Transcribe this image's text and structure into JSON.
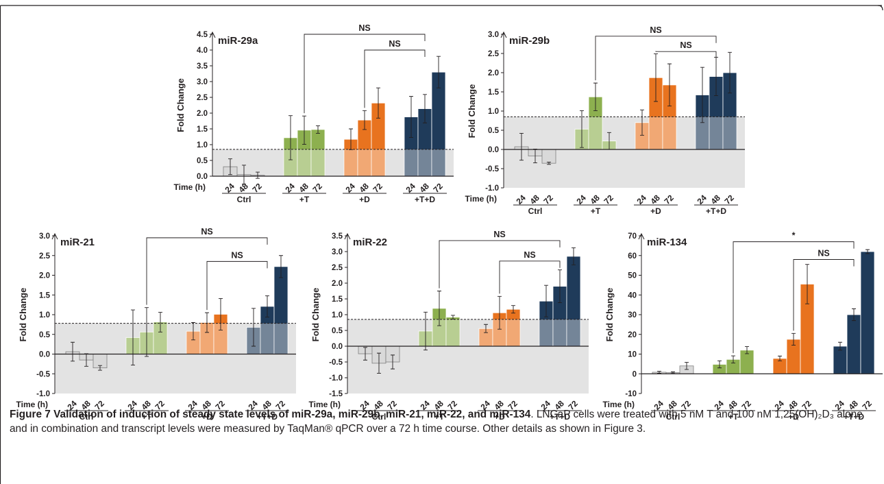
{
  "caption": {
    "title": "Figure 7 Validation of induction of steady state levels of miR-29a, miR-29b, miR-21, miR-22, and miR-134",
    "body": ". LNCaP cells were treated with 5 nM T and 100 nM 1,25(OH)₂D₃ alone and in combination and transcript levels were measured by TaqMan® qPCR over a 72 h time course. Other details as shown in Figure 3."
  },
  "colors": {
    "ctrl": "#d9d9d9",
    "t": "#8db04f",
    "d": "#e8731f",
    "td": "#1f3b5a",
    "shade": "#e3e3e3",
    "ink": "#231f20"
  },
  "chart_data": [
    {
      "id": "mir29a",
      "type": "bar",
      "title": "miR-29a",
      "ylabel": "Fold Change",
      "xlabel": "Time (h)",
      "ylim": [
        0,
        4.5
      ],
      "yticks": [
        0.0,
        0.5,
        1.0,
        1.5,
        2.0,
        2.5,
        3.0,
        3.5,
        4.0,
        4.5
      ],
      "threshold": 0.85,
      "groups": [
        {
          "name": "Ctrl",
          "color": "ctrl",
          "times": [
            "24",
            "48",
            "72"
          ],
          "values": [
            0.3,
            0.05,
            0.03
          ],
          "errors": [
            0.25,
            0.3,
            0.1
          ]
        },
        {
          "name": "+T",
          "color": "t",
          "times": [
            "24",
            "48",
            "72"
          ],
          "values": [
            1.22,
            1.46,
            1.48
          ],
          "errors": [
            0.7,
            0.45,
            0.12
          ]
        },
        {
          "name": "+D",
          "color": "d",
          "times": [
            "24",
            "48",
            "72"
          ],
          "values": [
            1.17,
            1.78,
            2.32
          ],
          "errors": [
            0.33,
            0.3,
            0.48
          ]
        },
        {
          "name": "+T+D",
          "color": "td",
          "times": [
            "24",
            "48",
            "72"
          ],
          "values": [
            1.88,
            2.14,
            3.3
          ],
          "errors": [
            0.65,
            0.45,
            0.5
          ]
        }
      ],
      "brackets": [
        {
          "label": "NS",
          "from": [
            1,
            1
          ],
          "to": [
            3,
            1
          ],
          "y": 4.5
        },
        {
          "label": "NS",
          "from": [
            2,
            1
          ],
          "to": [
            3,
            1
          ],
          "y": 4.0
        }
      ]
    },
    {
      "id": "mir29b",
      "type": "bar",
      "title": "miR-29b",
      "ylabel": "Fold Change",
      "xlabel": "Time (h)",
      "ylim": [
        -1.0,
        3.0
      ],
      "yticks": [
        -1.0,
        -0.5,
        0.0,
        0.5,
        1.0,
        1.5,
        2.0,
        2.5,
        3.0
      ],
      "threshold": 0.85,
      "groups": [
        {
          "name": "Ctrl",
          "color": "ctrl",
          "times": [
            "24",
            "48",
            "72"
          ],
          "values": [
            0.07,
            -0.17,
            -0.36
          ],
          "errors": [
            0.35,
            0.18,
            0.03
          ]
        },
        {
          "name": "+T",
          "color": "t",
          "times": [
            "24",
            "48",
            "72"
          ],
          "values": [
            0.53,
            1.37,
            0.22
          ],
          "errors": [
            0.48,
            0.36,
            0.22
          ]
        },
        {
          "name": "+D",
          "color": "d",
          "times": [
            "24",
            "48",
            "72"
          ],
          "values": [
            0.7,
            1.87,
            1.68
          ],
          "errors": [
            0.33,
            0.62,
            0.55
          ]
        },
        {
          "name": "+T+D",
          "color": "td",
          "times": [
            "24",
            "48",
            "72"
          ],
          "values": [
            1.42,
            1.9,
            2.0
          ],
          "errors": [
            0.72,
            0.5,
            0.53
          ]
        }
      ],
      "brackets": [
        {
          "label": "NS",
          "from": [
            1,
            1
          ],
          "to": [
            3,
            1
          ],
          "y": 2.95
        },
        {
          "label": "NS",
          "from": [
            2,
            1
          ],
          "to": [
            3,
            1
          ],
          "y": 2.55
        }
      ]
    },
    {
      "id": "mir21",
      "type": "bar",
      "title": "miR-21",
      "ylabel": "Fold Change",
      "xlabel": "Time (h)",
      "ylim": [
        -1.0,
        3.0
      ],
      "yticks": [
        -1.0,
        -0.5,
        0.0,
        0.5,
        1.0,
        1.5,
        2.0,
        2.5,
        3.0
      ],
      "threshold": 0.78,
      "groups": [
        {
          "name": "Ctrl",
          "color": "ctrl",
          "times": [
            "24",
            "48",
            "72"
          ],
          "values": [
            0.06,
            -0.15,
            -0.35
          ],
          "errors": [
            0.24,
            0.16,
            0.06
          ]
        },
        {
          "name": "+T",
          "color": "t",
          "times": [
            "24",
            "48",
            "72"
          ],
          "values": [
            0.42,
            0.56,
            0.81
          ],
          "errors": [
            0.7,
            0.62,
            0.25
          ]
        },
        {
          "name": "+D",
          "color": "d",
          "times": [
            "24",
            "48",
            "72"
          ],
          "values": [
            0.58,
            0.8,
            1.01
          ],
          "errors": [
            0.22,
            0.25,
            0.4
          ]
        },
        {
          "name": "+T+D",
          "color": "td",
          "times": [
            "24",
            "48",
            "72"
          ],
          "values": [
            0.68,
            1.21,
            2.22
          ],
          "errors": [
            0.48,
            0.27,
            0.28
          ]
        }
      ],
      "brackets": [
        {
          "label": "NS",
          "from": [
            1,
            1
          ],
          "to": [
            3,
            1
          ],
          "y": 2.95
        },
        {
          "label": "NS",
          "from": [
            2,
            1
          ],
          "to": [
            3,
            1
          ],
          "y": 2.35
        }
      ]
    },
    {
      "id": "mir22",
      "type": "bar",
      "title": "miR-22",
      "ylabel": "Fold Change",
      "xlabel": "Time (h)",
      "ylim": [
        -1.5,
        3.5
      ],
      "yticks": [
        -1.5,
        -1.0,
        -0.5,
        0.0,
        0.5,
        1.0,
        1.5,
        2.0,
        2.5,
        3.0,
        3.5
      ],
      "threshold": 0.85,
      "groups": [
        {
          "name": "Ctrl",
          "color": "ctrl",
          "times": [
            "24",
            "48",
            "72"
          ],
          "values": [
            -0.24,
            -0.54,
            -0.5
          ],
          "errors": [
            0.2,
            0.32,
            0.22
          ]
        },
        {
          "name": "+T",
          "color": "t",
          "times": [
            "24",
            "48",
            "72"
          ],
          "values": [
            0.48,
            1.2,
            0.92
          ],
          "errors": [
            0.6,
            0.55,
            0.06
          ]
        },
        {
          "name": "+D",
          "color": "d",
          "times": [
            "24",
            "48",
            "72"
          ],
          "values": [
            0.56,
            1.06,
            1.17
          ],
          "errors": [
            0.13,
            0.52,
            0.12
          ]
        },
        {
          "name": "+T+D",
          "color": "td",
          "times": [
            "24",
            "48",
            "72"
          ],
          "values": [
            1.43,
            1.9,
            2.85
          ],
          "errors": [
            0.5,
            0.52,
            0.27
          ]
        }
      ],
      "brackets": [
        {
          "label": "NS",
          "from": [
            1,
            1
          ],
          "to": [
            3,
            1
          ],
          "y": 3.35
        },
        {
          "label": "NS",
          "from": [
            2,
            1
          ],
          "to": [
            3,
            1
          ],
          "y": 2.7
        }
      ]
    },
    {
      "id": "mir134",
      "type": "bar",
      "title": "miR-134",
      "ylabel": "Fold Change",
      "xlabel": "Time (h)",
      "ylim": [
        -10,
        70
      ],
      "yticks": [
        -10,
        0,
        10,
        20,
        30,
        40,
        50,
        60,
        70
      ],
      "threshold": null,
      "groups": [
        {
          "name": "Ctrl",
          "color": "ctrl",
          "times": [
            "24",
            "48",
            "72"
          ],
          "values": [
            0.8,
            0.6,
            4.0
          ],
          "errors": [
            0.5,
            0.4,
            1.8
          ]
        },
        {
          "name": "+T",
          "color": "t",
          "times": [
            "24",
            "48",
            "72"
          ],
          "values": [
            4.8,
            7.3,
            12.0
          ],
          "errors": [
            1.8,
            1.8,
            1.8
          ]
        },
        {
          "name": "+D",
          "color": "d",
          "times": [
            "24",
            "48",
            "72"
          ],
          "values": [
            7.8,
            17.5,
            45.5
          ],
          "errors": [
            1.2,
            3.0,
            10.0
          ]
        },
        {
          "name": "+T+D",
          "color": "td",
          "times": [
            "24",
            "48",
            "72"
          ],
          "values": [
            14.0,
            30.0,
            62.0
          ],
          "errors": [
            2.0,
            3.0,
            1.0
          ]
        }
      ],
      "brackets": [
        {
          "label": "*",
          "from": [
            1,
            1
          ],
          "to": [
            3,
            1
          ],
          "y": 67
        },
        {
          "label": "NS",
          "from": [
            2,
            1
          ],
          "to": [
            3,
            1
          ],
          "y": 58
        }
      ]
    }
  ]
}
